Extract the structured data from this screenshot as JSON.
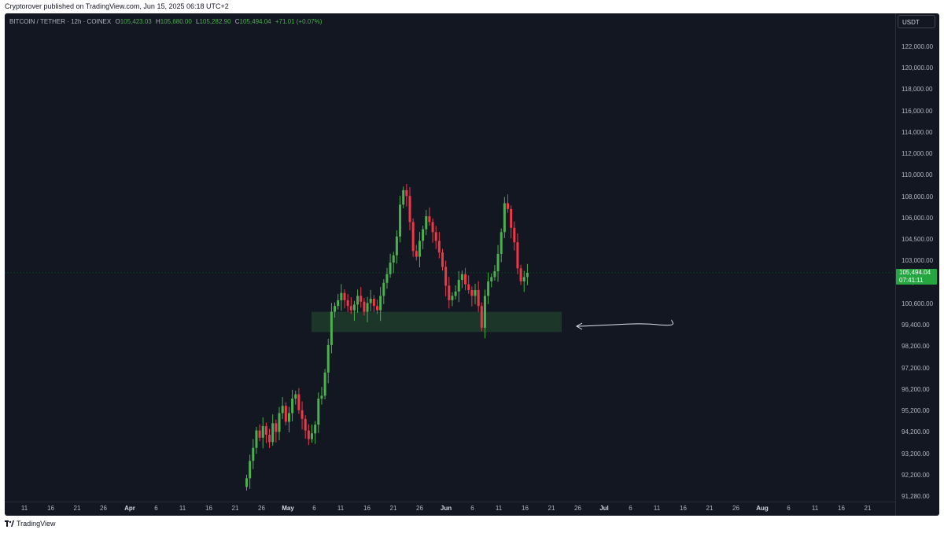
{
  "header": {
    "publish_line": "Cryptorover published on TradingView.com, Jun 15, 2025 06:18 UTC+2"
  },
  "legend": {
    "symbol": "BITCOIN / TETHER · 12h · COINEX",
    "open_label": "O",
    "open": "105,423.03",
    "high_label": "H",
    "high": "105,680.00",
    "low_label": "L",
    "low": "105,282.90",
    "close_label": "C",
    "close": "105,494.04",
    "change": "+71.01 (+0.07%)"
  },
  "price_axis": {
    "currency": "USDT",
    "labels": [
      "122,000.00",
      "120,000.00",
      "118,000.00",
      "116,000.00",
      "114,000.00",
      "112,000.00",
      "110,000.00",
      "108,000.00",
      "106,000.00",
      "104,500.00",
      "103,000.00",
      "101,800.00",
      "100,600.00",
      "99,400.00",
      "98,200.00",
      "97,200.00",
      "96,200.00",
      "95,200.00",
      "94,200.00",
      "93,200.00",
      "92,200.00",
      "91,280.00"
    ],
    "last_price": "105,494.04",
    "countdown": "07:41:11"
  },
  "time_axis": {
    "labels": [
      "11",
      "16",
      "21",
      "26",
      "Apr",
      "6",
      "11",
      "16",
      "21",
      "26",
      "May",
      "6",
      "11",
      "16",
      "21",
      "26",
      "Jun",
      "6",
      "11",
      "16",
      "21",
      "26",
      "Jul",
      "6",
      "11",
      "16",
      "21",
      "26",
      "Aug",
      "6",
      "11",
      "16",
      "21"
    ],
    "bold": [
      "Apr",
      "May",
      "Jun",
      "Jul",
      "Aug"
    ]
  },
  "colors": {
    "background": "#131722",
    "up": "#4caf50",
    "down": "#f23645",
    "zone": "#1e3a2a",
    "last_price": "#26a641"
  },
  "chart_data": {
    "type": "candlestick",
    "interval": "12h",
    "y_range": [
      91280,
      122000
    ],
    "support_zone": {
      "low": 101400,
      "high": 102800
    },
    "annotation": "arrow pointing left to support zone",
    "closes": [
      91300,
      92500,
      93400,
      94600,
      94100,
      94900,
      94300,
      93800,
      95100,
      94500,
      95800,
      96300,
      95200,
      95800,
      96800,
      97100,
      96000,
      95400,
      94600,
      94000,
      94400,
      95000,
      96800,
      97000,
      98600,
      100500,
      102800,
      103200,
      103600,
      104100,
      103600,
      103200,
      102900,
      103300,
      103900,
      103500,
      102800,
      103400,
      103700,
      103200,
      102900,
      103900,
      104800,
      105400,
      106200,
      106700,
      108000,
      110200,
      111200,
      110800,
      109000,
      107000,
      106600,
      107700,
      108500,
      109400,
      109000,
      108300,
      107700,
      106900,
      105900,
      104600,
      103600,
      103900,
      104200,
      105000,
      105400,
      104700,
      104300,
      103900,
      104300,
      103200,
      101700,
      103900,
      104900,
      105200,
      105600,
      106800,
      108300,
      110300,
      109900,
      108600,
      107600,
      105800,
      104900,
      105200,
      105494
    ]
  }
}
